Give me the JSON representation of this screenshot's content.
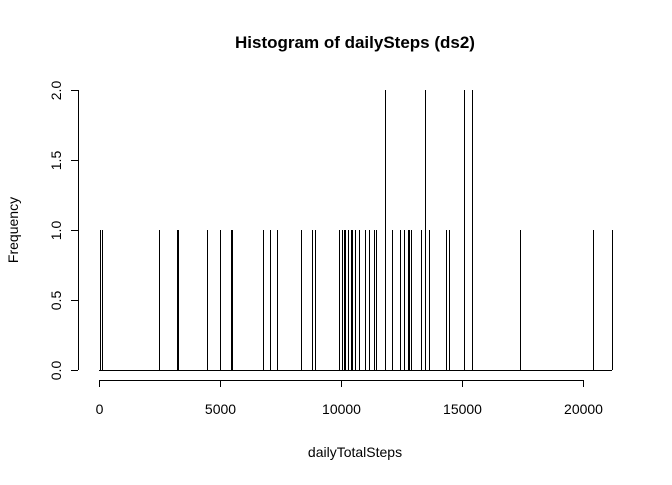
{
  "chart_data": {
    "type": "bar",
    "title": "Histogram of dailySteps (ds2)",
    "xlabel": "dailyTotalSteps",
    "ylabel": "Frequency",
    "xlim": [
      0,
      21200
    ],
    "ylim": [
      0,
      2.0
    ],
    "x_ticks": [
      "0",
      "5000",
      "10000",
      "15000",
      "20000"
    ],
    "y_ticks": [
      "0.0",
      "0.5",
      "1.0",
      "1.5",
      "2.0"
    ],
    "grid": false,
    "legend": "none",
    "bars": [
      {
        "x": 41,
        "y": 1
      },
      {
        "x": 126,
        "y": 1
      },
      {
        "x": 2492,
        "y": 1
      },
      {
        "x": 3219,
        "y": 1
      },
      {
        "x": 3272,
        "y": 1
      },
      {
        "x": 4472,
        "y": 1
      },
      {
        "x": 5018,
        "y": 1
      },
      {
        "x": 5441,
        "y": 1
      },
      {
        "x": 5485,
        "y": 1
      },
      {
        "x": 6778,
        "y": 1
      },
      {
        "x": 7047,
        "y": 1
      },
      {
        "x": 7336,
        "y": 1
      },
      {
        "x": 8334,
        "y": 1
      },
      {
        "x": 8355,
        "y": 1
      },
      {
        "x": 8821,
        "y": 1
      },
      {
        "x": 8918,
        "y": 1
      },
      {
        "x": 9900,
        "y": 1
      },
      {
        "x": 10056,
        "y": 1
      },
      {
        "x": 10139,
        "y": 1
      },
      {
        "x": 10183,
        "y": 1
      },
      {
        "x": 10304,
        "y": 1
      },
      {
        "x": 10395,
        "y": 1
      },
      {
        "x": 10439,
        "y": 1
      },
      {
        "x": 10571,
        "y": 1
      },
      {
        "x": 10765,
        "y": 1
      },
      {
        "x": 11005,
        "y": 1
      },
      {
        "x": 11162,
        "y": 1
      },
      {
        "x": 11352,
        "y": 1
      },
      {
        "x": 11458,
        "y": 1
      },
      {
        "x": 11834,
        "y": 2
      },
      {
        "x": 12116,
        "y": 1
      },
      {
        "x": 12426,
        "y": 1
      },
      {
        "x": 12608,
        "y": 1
      },
      {
        "x": 12787,
        "y": 1
      },
      {
        "x": 12811,
        "y": 1
      },
      {
        "x": 12883,
        "y": 1
      },
      {
        "x": 13294,
        "y": 1
      },
      {
        "x": 13452,
        "y": 2
      },
      {
        "x": 13460,
        "y": 1
      },
      {
        "x": 13646,
        "y": 1
      },
      {
        "x": 14339,
        "y": 1
      },
      {
        "x": 14478,
        "y": 1
      },
      {
        "x": 15084,
        "y": 1
      },
      {
        "x": 15098,
        "y": 2
      },
      {
        "x": 15414,
        "y": 2
      },
      {
        "x": 17382,
        "y": 1
      },
      {
        "x": 20427,
        "y": 1
      },
      {
        "x": 21194,
        "y": 1
      }
    ]
  }
}
